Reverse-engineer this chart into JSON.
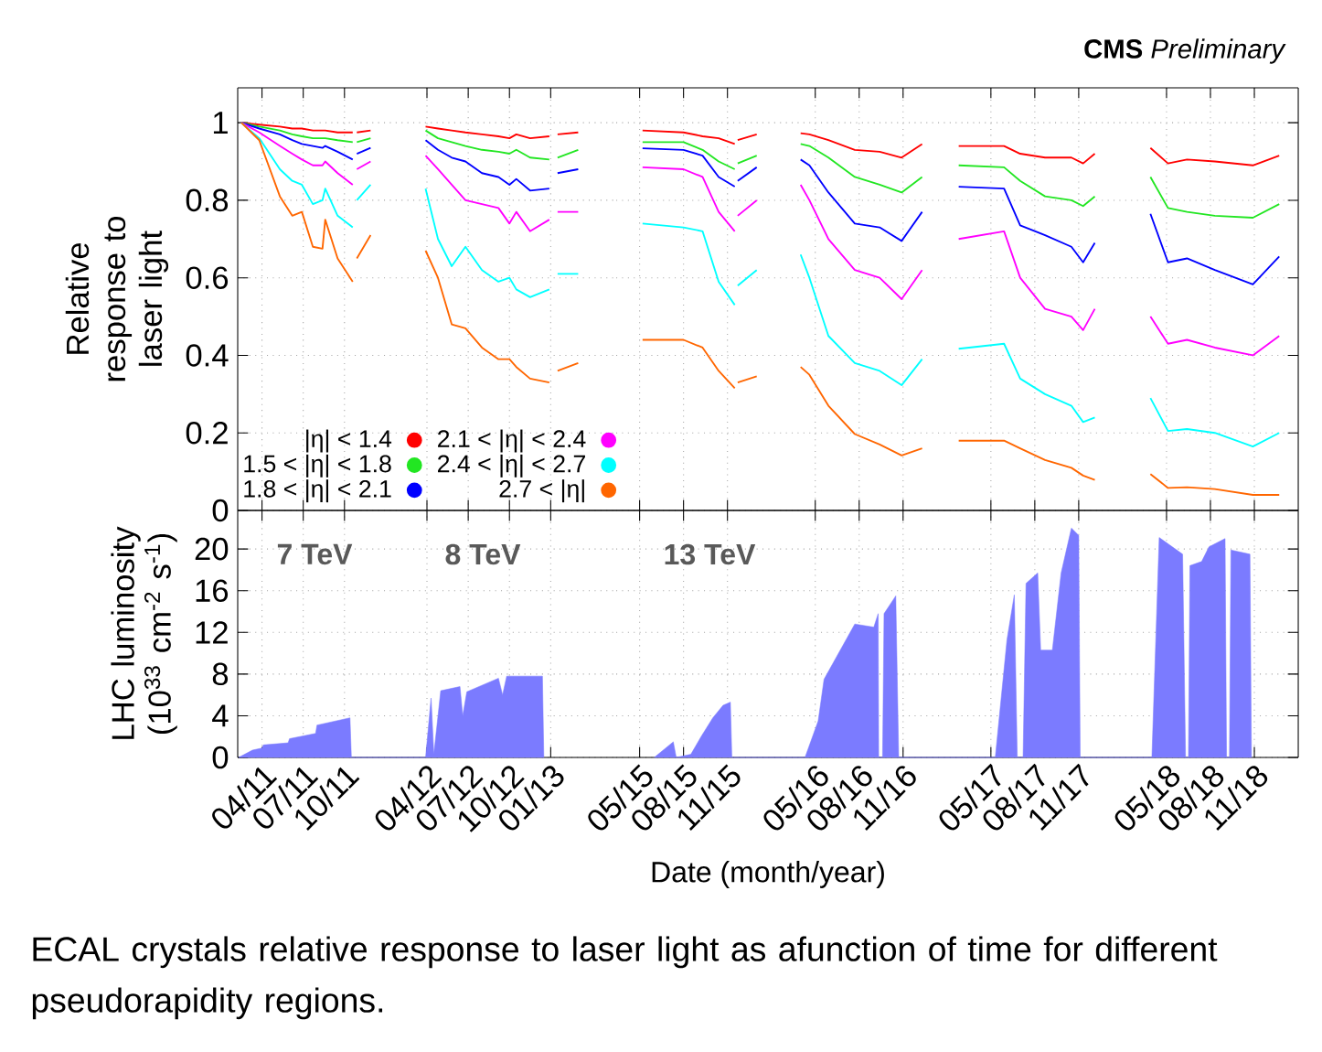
{
  "chart_data": [
    {
      "type": "line",
      "ylabel": "Relative response to laser light",
      "x": [
        "2011-02-16",
        "2011-03-25",
        "2011-05-10",
        "2011-06-07",
        "2011-06-28",
        "2011-07-22",
        "2011-08-13",
        "2011-08-19",
        "2011-09-16",
        "2011-10-19",
        "2011-10-23",
        "2011-10-28",
        "2011-11-28",
        "2012-01-28",
        "2012-03-28",
        "2012-04-25",
        "2012-05-25",
        "2012-06-25",
        "2012-08-01",
        "2012-09-07",
        "2012-10-01",
        "2012-10-16",
        "2012-11-16",
        "2012-12-28",
        "2013-01-07",
        "2013-01-16",
        "2013-03-01"
      ],
      "series": [
        {
          "name": "|η| < 1.4",
          "color": "#ff0000",
          "values": [
            1.0,
            0.995,
            0.99,
            0.985,
            0.985,
            0.98,
            0.98,
            0.98,
            0.975,
            0.975,
            null,
            0.975,
            0.98,
            null,
            0.99,
            0.985,
            0.98,
            0.975,
            0.97,
            0.965,
            0.96,
            0.97,
            0.96,
            0.965,
            null,
            0.97,
            0.975
          ]
        },
        {
          "name": "1.5 < |η| < 1.8",
          "color": "#22e622",
          "values": [
            1.0,
            0.99,
            0.98,
            0.97,
            0.965,
            0.96,
            0.96,
            0.96,
            0.955,
            0.95,
            null,
            0.95,
            0.96,
            null,
            0.98,
            0.96,
            0.95,
            0.94,
            0.93,
            0.925,
            0.92,
            0.93,
            0.91,
            0.905,
            null,
            0.91,
            0.93
          ]
        },
        {
          "name": "1.8 < |η| < 2.1",
          "color": "#0000ff",
          "values": [
            1.0,
            0.985,
            0.97,
            0.955,
            0.945,
            0.94,
            0.935,
            0.94,
            0.925,
            0.905,
            null,
            0.92,
            0.935,
            null,
            0.955,
            0.93,
            0.91,
            0.9,
            0.87,
            0.86,
            0.84,
            0.855,
            0.825,
            0.83,
            null,
            0.87,
            0.88
          ]
        },
        {
          "name": "2.1 < |η| < 2.4",
          "color": "#ff00ff",
          "values": [
            1.0,
            0.975,
            0.94,
            0.92,
            0.905,
            0.89,
            0.89,
            0.9,
            0.87,
            0.84,
            null,
            0.88,
            0.9,
            null,
            0.915,
            0.88,
            0.84,
            0.8,
            0.79,
            0.78,
            0.74,
            0.77,
            0.72,
            0.75,
            null,
            0.77,
            0.77
          ]
        },
        {
          "name": "2.4 < |η| < 2.7",
          "color": "#00ffff",
          "values": [
            1.0,
            0.96,
            0.88,
            0.85,
            0.84,
            0.79,
            0.8,
            0.83,
            0.76,
            0.73,
            null,
            0.8,
            0.84,
            null,
            0.83,
            0.7,
            0.63,
            0.68,
            0.62,
            0.59,
            0.6,
            0.57,
            0.55,
            0.57,
            null,
            0.61,
            0.61
          ]
        },
        {
          "name": "2.7 < |η|",
          "color": "#ff6600",
          "values": [
            1.0,
            0.955,
            0.81,
            0.76,
            0.77,
            0.68,
            0.675,
            0.75,
            0.65,
            0.59,
            null,
            0.65,
            0.71,
            null,
            0.67,
            0.6,
            0.48,
            0.47,
            0.42,
            0.39,
            0.39,
            0.37,
            0.34,
            0.33,
            null,
            0.36,
            0.38
          ]
        }
      ],
      "xlim": [
        "2011-02-08",
        "2013-05-24"
      ],
      "xticks": [
        {
          "value": "2011-04",
          "label": null
        },
        {
          "value": "2011-07",
          "label": null
        },
        {
          "value": "2011-10",
          "label": null
        },
        {
          "value": "2012-04",
          "label": null
        },
        {
          "value": "2012-07",
          "label": null
        },
        {
          "value": "2012-10",
          "label": null
        },
        {
          "value": "2013-01",
          "label": null
        }
      ],
      "ylim": [
        0,
        1.09
      ],
      "yticks": [
        0,
        0.2,
        0.4,
        0.6,
        0.8,
        1
      ],
      "grid": true,
      "legend": "bottom",
      "tick_labels": "y"
    },
    {
      "type": "line",
      "title": "**CMS** *Preliminary*",
      "x": [
        "2015-05-07",
        "2015-08-01",
        "2015-09-10",
        "2015-10-13",
        "2015-11-16",
        "2015-11-19",
        "2015-11-22",
        "2016-01-01",
        "2016-02-01",
        "2016-04-01",
        "2016-04-19",
        "2016-05-28",
        "2016-07-22",
        "2016-09-13",
        "2016-10-28",
        "2016-12-10",
        "2017-01-16",
        "2017-02-25",
        "2017-05-28",
        "2017-07-01",
        "2017-08-22",
        "2017-10-16",
        "2017-11-10",
        "2017-12-04",
        "2018-02-01",
        "2018-03-28",
        "2018-05-04",
        "2018-06-13",
        "2018-08-10",
        "2018-10-28",
        "2018-12-22"
      ],
      "series": [
        {
          "color": "#ff0000",
          "values": [
            0.98,
            0.975,
            0.965,
            0.96,
            0.945,
            null,
            0.955,
            0.97,
            null,
            0.973,
            0.97,
            0.955,
            0.93,
            0.925,
            0.91,
            0.945,
            null,
            0.94,
            0.94,
            0.92,
            0.91,
            0.91,
            0.895,
            0.92,
            null,
            0.935,
            0.895,
            0.905,
            0.9,
            0.89,
            0.915
          ]
        },
        {
          "color": "#22e622",
          "values": [
            0.95,
            0.95,
            0.93,
            0.9,
            0.88,
            null,
            0.895,
            0.915,
            null,
            0.945,
            0.94,
            0.91,
            0.86,
            0.84,
            0.82,
            0.86,
            null,
            0.89,
            0.885,
            0.85,
            0.81,
            0.8,
            0.785,
            0.81,
            null,
            0.86,
            0.78,
            0.77,
            0.76,
            0.755,
            0.79
          ]
        },
        {
          "color": "#0000ff",
          "values": [
            0.934,
            0.93,
            0.915,
            0.86,
            0.835,
            null,
            0.85,
            0.885,
            null,
            0.905,
            0.89,
            0.82,
            0.74,
            0.73,
            0.695,
            0.77,
            null,
            0.835,
            0.83,
            0.735,
            0.71,
            0.68,
            0.64,
            0.69,
            null,
            0.765,
            0.64,
            0.65,
            0.62,
            0.583,
            0.655
          ]
        },
        {
          "color": "#ff00ff",
          "values": [
            0.885,
            0.88,
            0.86,
            0.77,
            0.72,
            null,
            0.76,
            0.8,
            null,
            0.84,
            0.8,
            0.7,
            0.62,
            0.6,
            0.545,
            0.62,
            null,
            0.7,
            0.72,
            0.6,
            0.52,
            0.5,
            0.465,
            0.52,
            null,
            0.5,
            0.43,
            0.44,
            0.42,
            0.4,
            0.45
          ]
        },
        {
          "color": "#00ffff",
          "values": [
            0.74,
            0.73,
            0.72,
            0.59,
            0.53,
            null,
            0.58,
            0.62,
            null,
            0.66,
            0.6,
            0.45,
            0.38,
            0.36,
            0.323,
            0.39,
            null,
            0.417,
            0.43,
            0.34,
            0.3,
            0.27,
            0.228,
            0.24,
            null,
            0.29,
            0.205,
            0.21,
            0.2,
            0.165,
            0.2
          ]
        },
        {
          "color": "#ff6600",
          "values": [
            0.44,
            0.44,
            0.42,
            0.36,
            0.315,
            null,
            0.33,
            0.346,
            null,
            0.37,
            0.35,
            0.27,
            0.197,
            0.17,
            0.142,
            0.16,
            null,
            0.18,
            0.18,
            0.16,
            0.13,
            0.11,
            0.09,
            0.079,
            null,
            0.094,
            0.058,
            0.06,
            0.055,
            0.04,
            0.04
          ]
        }
      ],
      "xlim": [
        "2015-03-13",
        "2019-02-01"
      ],
      "xticks": [
        {
          "value": "2015-05",
          "label": null
        },
        {
          "value": "2015-08",
          "label": null
        },
        {
          "value": "2015-11",
          "label": null
        },
        {
          "value": "2016-05",
          "label": null
        },
        {
          "value": "2016-08",
          "label": null
        },
        {
          "value": "2016-11",
          "label": null
        },
        {
          "value": "2017-05",
          "label": null
        },
        {
          "value": "2017-08",
          "label": null
        },
        {
          "value": "2017-11",
          "label": null
        },
        {
          "value": "2018-05",
          "label": null
        },
        {
          "value": "2018-08",
          "label": null
        },
        {
          "value": "2018-11",
          "label": null
        }
      ],
      "ylim": [
        0,
        1.09
      ],
      "yticks": [
        0,
        0.2,
        0.4,
        0.6,
        0.8,
        1
      ],
      "grid": true,
      "tick_labels": false
    },
    {
      "type": "area",
      "ylabel": "LHC luminosity (10$^{33}$ cm$^{-2}$ s$^{-1}$)",
      "x": [
        "2011-02-10",
        "2011-03-10",
        "2011-04-01",
        "2011-04-04",
        "2011-05-28",
        "2011-06-01",
        "2011-07-28",
        "2011-08-01",
        "2011-10-13",
        "2011-10-16",
        "2012-03-28",
        "2012-04-10",
        "2012-04-16",
        "2012-05-01",
        "2012-06-13",
        "2012-06-19",
        "2012-06-28",
        "2012-09-07",
        "2012-09-16",
        "2012-09-25",
        "2012-12-13",
        "2012-12-16"
      ],
      "series": [
        {
          "color": "#7b7bff",
          "values": [
            0,
            0.7,
            0.9,
            1.2,
            1.4,
            1.8,
            2.3,
            3.1,
            3.8,
            0,
            0,
            5.7,
            0.3,
            6.4,
            6.8,
            4.0,
            6.3,
            7.6,
            6.0,
            7.8,
            7.8,
            0
          ]
        }
      ],
      "xlim": [
        "2011-02-08",
        "2013-05-24"
      ],
      "xticks": [
        {
          "value": "2011-04",
          "label": "04/11"
        },
        {
          "value": "2011-07",
          "label": "07/11"
        },
        {
          "value": "2011-10",
          "label": "10/11"
        },
        {
          "value": "2012-04",
          "label": "04/12"
        },
        {
          "value": "2012-07",
          "label": "07/12"
        },
        {
          "value": "2012-10",
          "label": "10/12"
        },
        {
          "value": "2013-01",
          "label": "01/13"
        }
      ],
      "ylim": [
        0,
        23.7
      ],
      "yticks": [
        0,
        4,
        8,
        12,
        16,
        20
      ],
      "grid": true,
      "annotations": [
        "7 TeV",
        "8 TeV"
      ]
    },
    {
      "type": "area",
      "xlabel": "Date (month/year)",
      "x": [
        "2015-06-01",
        "2015-07-10",
        "2015-07-16",
        "2015-08-16",
        "2015-09-07",
        "2015-10-01",
        "2015-10-22",
        "2015-11-07",
        "2015-11-10",
        "2016-04-10",
        "2016-05-07",
        "2016-05-19",
        "2016-07-22",
        "2016-09-01",
        "2016-09-10",
        "2016-09-11",
        "2016-09-19",
        "2016-09-22",
        "2016-10-16",
        "2016-10-22",
        "2017-05-10",
        "2017-06-04",
        "2017-06-19",
        "2017-06-25",
        "2017-07-07",
        "2017-07-13",
        "2017-08-07",
        "2017-08-13",
        "2017-09-07",
        "2017-09-25",
        "2017-10-16",
        "2017-11-01",
        "2017-11-04",
        "2018-04-01",
        "2018-04-16",
        "2018-06-04",
        "2018-06-10",
        "2018-06-16",
        "2018-06-19",
        "2018-07-13",
        "2018-07-28",
        "2018-09-01",
        "2018-09-04",
        "2018-09-10",
        "2018-09-13",
        "2018-10-22",
        "2018-10-25"
      ],
      "series": [
        {
          "color": "#7b7bff",
          "values": [
            0,
            1.5,
            0,
            0.3,
            2.0,
            3.8,
            5.0,
            5.3,
            0,
            0,
            3.5,
            7.5,
            12.8,
            12.5,
            13.8,
            0,
            0,
            13.8,
            15.5,
            0,
            0,
            11.3,
            15.6,
            0,
            0,
            16.7,
            17.7,
            10.3,
            10.3,
            17.7,
            22.0,
            21.3,
            0,
            0,
            21.1,
            19.5,
            0,
            0,
            18.4,
            18.8,
            20.2,
            21.0,
            0,
            0,
            19.9,
            19.5,
            0
          ]
        }
      ],
      "xlim": [
        "2015-03-13",
        "2019-02-01"
      ],
      "xticks": [
        {
          "value": "2015-05",
          "label": "05/15"
        },
        {
          "value": "2015-08",
          "label": "08/15"
        },
        {
          "value": "2015-11",
          "label": "11/15"
        },
        {
          "value": "2016-05",
          "label": "05/16"
        },
        {
          "value": "2016-08",
          "label": "08/16"
        },
        {
          "value": "2016-11",
          "label": "11/16"
        },
        {
          "value": "2017-05",
          "label": "05/17"
        },
        {
          "value": "2017-08",
          "label": "08/17"
        },
        {
          "value": "2017-11",
          "label": "11/17"
        },
        {
          "value": "2018-05",
          "label": "05/18"
        },
        {
          "value": "2018-08",
          "label": "08/18"
        },
        {
          "value": "2018-11",
          "label": "11/18"
        }
      ],
      "ylim": [
        0,
        23.7
      ],
      "yticks": [
        0,
        4,
        8,
        12,
        16,
        20
      ],
      "grid": true,
      "tick_labels": "x",
      "annotations": [
        "13 TeV",
        "ECAL crystals relative response to laser light as afunction of time for different pseudorapidity regions."
      ]
    }
  ]
}
